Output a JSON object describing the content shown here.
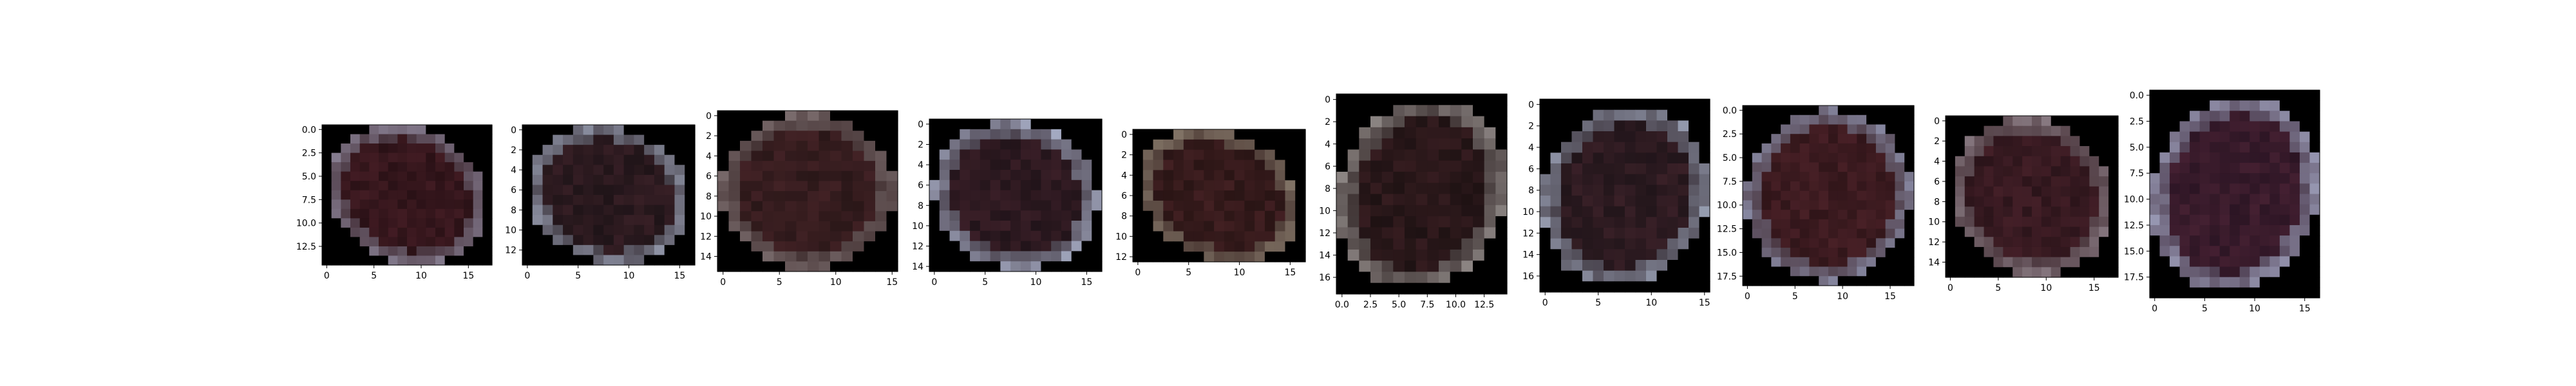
{
  "figure": {
    "background": "#ffffff",
    "panel_count": 10
  },
  "chart_data": [
    {
      "type": "heatmap",
      "content": "pixelated dark reddish-brown oval blob on black background",
      "image_shape": [
        15,
        18
      ],
      "xlim": [
        -0.5,
        17.5
      ],
      "ylim": [
        14.5,
        -0.5
      ],
      "xticks": [
        0,
        5,
        10,
        15
      ],
      "xtick_labels": [
        "0",
        "5",
        "10",
        "15"
      ],
      "yticks": [
        0,
        2.5,
        5,
        7.5,
        10,
        12.5
      ],
      "ytick_labels": [
        "0.0",
        "2.5",
        "5.0",
        "7.5",
        "10.0",
        "12.5"
      ],
      "colors": {
        "background": "#000000",
        "core": "#2a1116",
        "rim": "#8a8296"
      }
    },
    {
      "type": "heatmap",
      "content": "pixelated dark oval blob tilted, bluish-grey rim",
      "image_shape": [
        14,
        17
      ],
      "xlim": [
        -0.5,
        16.5
      ],
      "ylim": [
        13.5,
        -0.5
      ],
      "xticks": [
        0,
        5,
        10,
        15
      ],
      "xtick_labels": [
        "0",
        "5",
        "10",
        "15"
      ],
      "yticks": [
        0,
        2,
        4,
        6,
        8,
        10,
        12
      ],
      "ytick_labels": [
        "0",
        "2",
        "4",
        "6",
        "8",
        "10",
        "12"
      ],
      "colors": {
        "background": "#000000",
        "core": "#1f1418",
        "rim": "#9aa0b4"
      }
    },
    {
      "type": "heatmap",
      "content": "pixelated dark brown oval blob",
      "image_shape": [
        16,
        16
      ],
      "xlim": [
        -0.5,
        15.5
      ],
      "ylim": [
        15.5,
        -0.5
      ],
      "xticks": [
        0,
        5,
        10,
        15
      ],
      "xtick_labels": [
        "0",
        "5",
        "10",
        "15"
      ],
      "yticks": [
        0,
        2,
        4,
        6,
        8,
        10,
        12,
        14
      ],
      "ytick_labels": [
        "0",
        "2",
        "4",
        "6",
        "8",
        "10",
        "12",
        "14"
      ],
      "colors": {
        "background": "#000000",
        "core": "#2a1718",
        "rim": "#7d6f70"
      }
    },
    {
      "type": "heatmap",
      "content": "pixelated dark oval blob tilted, pale blue rim",
      "image_shape": [
        15,
        17
      ],
      "xlim": [
        -0.5,
        16.5
      ],
      "ylim": [
        14.5,
        -0.5
      ],
      "xticks": [
        0,
        5,
        10,
        15
      ],
      "xtick_labels": [
        "0",
        "5",
        "10",
        "15"
      ],
      "yticks": [
        0,
        2,
        4,
        6,
        8,
        10,
        12,
        14
      ],
      "ytick_labels": [
        "0",
        "2",
        "4",
        "6",
        "8",
        "10",
        "12",
        "14"
      ],
      "colors": {
        "background": "#000000",
        "core": "#22141a",
        "rim": "#a6acc4"
      }
    },
    {
      "type": "heatmap",
      "content": "pixelated dark oval blob, warm tan rim",
      "image_shape": [
        13,
        17
      ],
      "xlim": [
        -0.5,
        16.5
      ],
      "ylim": [
        12.5,
        -0.5
      ],
      "xticks": [
        0,
        5,
        10,
        15
      ],
      "xtick_labels": [
        "0",
        "5",
        "10",
        "15"
      ],
      "yticks": [
        0,
        2,
        4,
        6,
        8,
        10,
        12
      ],
      "ytick_labels": [
        "0",
        "2",
        "4",
        "6",
        "8",
        "10",
        "12"
      ],
      "colors": {
        "background": "#000000",
        "core": "#2a1515",
        "rim": "#8c7f70"
      }
    },
    {
      "type": "heatmap",
      "content": "pixelated dark oval blob, tall",
      "image_shape": [
        18,
        15
      ],
      "xlim": [
        -0.5,
        14.5
      ],
      "ylim": [
        17.5,
        -0.5
      ],
      "xticks": [
        0,
        2.5,
        5,
        7.5,
        10,
        12.5
      ],
      "xtick_labels": [
        "0.0",
        "2.5",
        "5.0",
        "7.5",
        "10.0",
        "12.5"
      ],
      "yticks": [
        0,
        2,
        4,
        6,
        8,
        10,
        12,
        14,
        16
      ],
      "ytick_labels": [
        "0",
        "2",
        "4",
        "6",
        "8",
        "10",
        "12",
        "14",
        "16"
      ],
      "colors": {
        "background": "#000000",
        "core": "#1e1213",
        "rim": "#8f8886"
      }
    },
    {
      "type": "heatmap",
      "content": "pixelated dark round blob, grey-blue rim",
      "image_shape": [
        18,
        16
      ],
      "xlim": [
        -0.5,
        15.5
      ],
      "ylim": [
        17.5,
        -0.5
      ],
      "xticks": [
        0,
        5,
        10,
        15
      ],
      "xtick_labels": [
        "0",
        "5",
        "10",
        "15"
      ],
      "yticks": [
        0,
        2,
        4,
        6,
        8,
        10,
        12,
        14,
        16
      ],
      "ytick_labels": [
        "0",
        "2",
        "4",
        "6",
        "8",
        "10",
        "12",
        "14",
        "16"
      ],
      "colors": {
        "background": "#000000",
        "core": "#21151a",
        "rim": "#9ba2b6"
      }
    },
    {
      "type": "heatmap",
      "content": "pixelated dark reddish oval blob tilted",
      "image_shape": [
        19,
        18
      ],
      "xlim": [
        -0.5,
        17.5
      ],
      "ylim": [
        18.5,
        -0.5
      ],
      "xticks": [
        0,
        5,
        10,
        15
      ],
      "xtick_labels": [
        "0",
        "5",
        "10",
        "15"
      ],
      "yticks": [
        0,
        2.5,
        5,
        7.5,
        10,
        12.5,
        15,
        17.5
      ],
      "ytick_labels": [
        "0.0",
        "2.5",
        "5.0",
        "7.5",
        "10.0",
        "12.5",
        "15.0",
        "17.5"
      ],
      "colors": {
        "background": "#000000",
        "core": "#301519",
        "rim": "#8a8ca6"
      }
    },
    {
      "type": "heatmap",
      "content": "pixelated dark reddish oval blob tilted",
      "image_shape": [
        16,
        18
      ],
      "xlim": [
        -0.5,
        17.5
      ],
      "ylim": [
        15.5,
        -0.5
      ],
      "xticks": [
        0,
        5,
        10,
        15
      ],
      "xtick_labels": [
        "0",
        "5",
        "10",
        "15"
      ],
      "yticks": [
        0,
        2,
        4,
        6,
        8,
        10,
        12,
        14
      ],
      "ytick_labels": [
        "0",
        "2",
        "4",
        "6",
        "8",
        "10",
        "12",
        "14"
      ],
      "colors": {
        "background": "#000000",
        "core": "#2b141a",
        "rim": "#8e8088"
      }
    },
    {
      "type": "heatmap",
      "content": "pixelated dark purple oval blob, tall",
      "image_shape": [
        20,
        17
      ],
      "xlim": [
        -0.5,
        16.5
      ],
      "ylim": [
        19.5,
        -0.5
      ],
      "xticks": [
        0,
        5,
        10,
        15
      ],
      "xtick_labels": [
        "0",
        "5",
        "10",
        "15"
      ],
      "yticks": [
        0,
        2.5,
        5,
        7.5,
        10,
        12.5,
        15,
        17.5
      ],
      "ytick_labels": [
        "0.0",
        "2.5",
        "5.0",
        "7.5",
        "10.0",
        "12.5",
        "15.0",
        "17.5"
      ],
      "colors": {
        "background": "#000000",
        "core": "#2c1524",
        "rim": "#a3a6c2"
      }
    }
  ]
}
